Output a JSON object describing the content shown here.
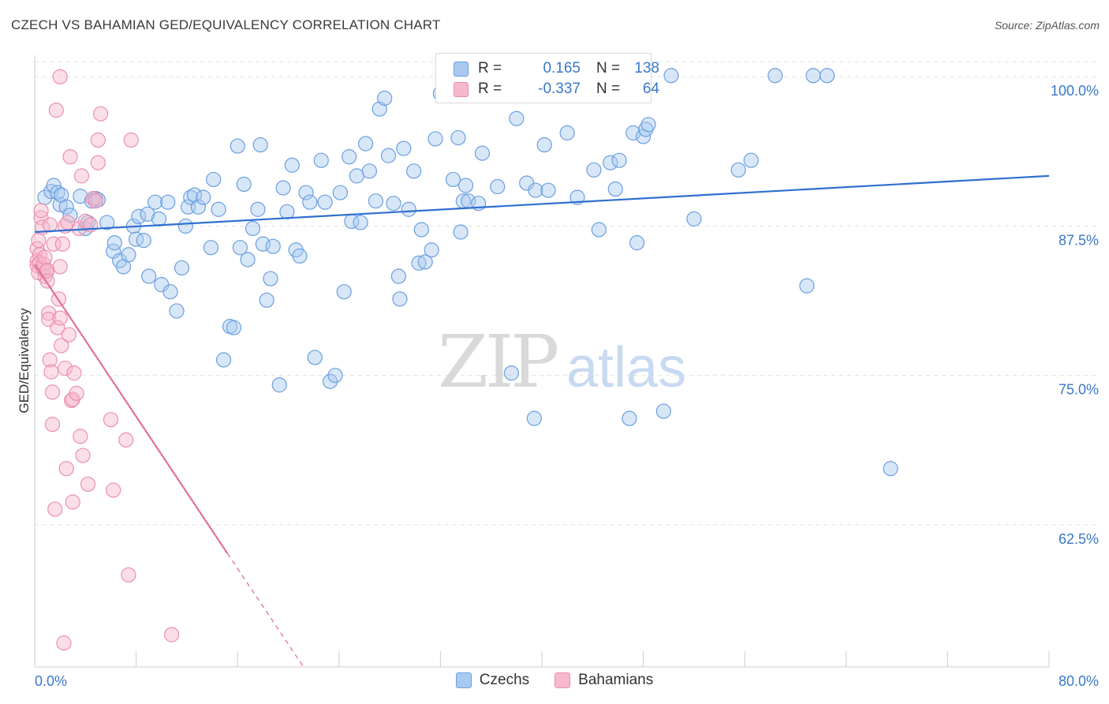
{
  "title": "CZECH VS BAHAMIAN GED/EQUIVALENCY CORRELATION CHART",
  "source": "Source: ZipAtlas.com",
  "watermark": {
    "zip": "ZIP",
    "atlas": "atlas"
  },
  "legend": {
    "rows": [
      {
        "r_label": "R =",
        "r_value": "0.165",
        "n_label": "N =",
        "n_value": "138"
      },
      {
        "r_label": "R =",
        "r_value": "-0.337",
        "n_label": "N =",
        "n_value": "64"
      }
    ]
  },
  "colors": {
    "czech_fill": "#a9c9f0",
    "czech_stroke": "#6a9fe0",
    "czech_line": "#2f6fd0",
    "bahamian_fill": "#f6b8cb",
    "bahamian_stroke": "#ec8fae",
    "bahamian_line": "#e0709a",
    "axis_label": "#3a78c9",
    "grid": "#e2e2e2"
  },
  "chart_data": {
    "type": "scatter",
    "title": "CZECH VS BAHAMIAN GED/EQUIVALENCY CORRELATION CHART",
    "xlabel": "",
    "ylabel": "GED/Equivalency",
    "xlim": [
      0,
      80
    ],
    "ylim": [
      50.6,
      101.8
    ],
    "x_tick_labels": [
      "0.0%",
      "80.0%"
    ],
    "y_ticks": [
      100,
      87.5,
      75,
      62.5
    ],
    "y_tick_labels": [
      "100.0%",
      "87.5%",
      "75.0%",
      "62.5%"
    ],
    "grid": "horizontal dashed",
    "legend_position": "bottom-center",
    "series": [
      {
        "name": "Czechs",
        "r": 0.165,
        "n": 138,
        "trend": {
          "x": [
            0,
            80
          ],
          "y": [
            87.0,
            91.7
          ]
        },
        "points": [
          [
            0.8,
            89.9
          ],
          [
            1.3,
            90.4
          ],
          [
            1.5,
            90.9
          ],
          [
            1.8,
            90.3
          ],
          [
            2.0,
            89.3
          ],
          [
            2.1,
            90.1
          ],
          [
            2.5,
            89.1
          ],
          [
            2.8,
            88.4
          ],
          [
            3.6,
            90.0
          ],
          [
            4.0,
            87.3
          ],
          [
            4.2,
            87.8
          ],
          [
            4.5,
            89.6
          ],
          [
            4.8,
            89.8
          ],
          [
            5.0,
            89.7
          ],
          [
            5.7,
            87.8
          ],
          [
            6.2,
            85.4
          ],
          [
            6.3,
            86.1
          ],
          [
            6.7,
            84.6
          ],
          [
            7.0,
            84.1
          ],
          [
            7.4,
            85.1
          ],
          [
            7.8,
            87.5
          ],
          [
            8.0,
            86.4
          ],
          [
            8.2,
            88.3
          ],
          [
            8.6,
            86.3
          ],
          [
            8.9,
            88.5
          ],
          [
            9.0,
            83.3
          ],
          [
            9.5,
            89.5
          ],
          [
            9.8,
            88.1
          ],
          [
            10.0,
            82.6
          ],
          [
            10.5,
            89.5
          ],
          [
            10.7,
            82.0
          ],
          [
            11.2,
            80.4
          ],
          [
            11.6,
            84.0
          ],
          [
            11.9,
            87.5
          ],
          [
            12.1,
            89.1
          ],
          [
            12.3,
            89.9
          ],
          [
            12.6,
            90.1
          ],
          [
            12.9,
            89.1
          ],
          [
            13.3,
            89.9
          ],
          [
            13.9,
            85.7
          ],
          [
            14.1,
            91.4
          ],
          [
            14.5,
            88.9
          ],
          [
            14.9,
            76.3
          ],
          [
            15.4,
            79.1
          ],
          [
            15.7,
            79.0
          ],
          [
            16.0,
            94.2
          ],
          [
            16.2,
            85.7
          ],
          [
            16.5,
            91.0
          ],
          [
            16.8,
            84.7
          ],
          [
            17.2,
            87.3
          ],
          [
            17.6,
            88.9
          ],
          [
            17.8,
            94.3
          ],
          [
            18.0,
            86.0
          ],
          [
            18.3,
            81.3
          ],
          [
            18.6,
            83.1
          ],
          [
            18.8,
            85.8
          ],
          [
            19.3,
            74.2
          ],
          [
            19.6,
            90.7
          ],
          [
            19.9,
            88.7
          ],
          [
            20.3,
            92.6
          ],
          [
            20.6,
            85.5
          ],
          [
            20.9,
            85.0
          ],
          [
            21.4,
            90.3
          ],
          [
            21.7,
            89.5
          ],
          [
            22.1,
            76.5
          ],
          [
            22.6,
            93.0
          ],
          [
            22.9,
            89.5
          ],
          [
            23.3,
            74.5
          ],
          [
            23.7,
            75.0
          ],
          [
            24.1,
            90.3
          ],
          [
            24.4,
            82.0
          ],
          [
            24.8,
            93.3
          ],
          [
            25.0,
            87.9
          ],
          [
            25.4,
            91.7
          ],
          [
            25.7,
            87.8
          ],
          [
            26.1,
            94.4
          ],
          [
            26.4,
            92.1
          ],
          [
            26.9,
            89.6
          ],
          [
            27.2,
            97.3
          ],
          [
            27.6,
            98.2
          ],
          [
            27.9,
            93.4
          ],
          [
            28.3,
            89.4
          ],
          [
            28.7,
            83.3
          ],
          [
            28.8,
            81.4
          ],
          [
            29.1,
            94.0
          ],
          [
            29.5,
            88.9
          ],
          [
            29.9,
            92.1
          ],
          [
            30.3,
            84.4
          ],
          [
            30.5,
            87.2
          ],
          [
            30.8,
            84.5
          ],
          [
            31.3,
            85.5
          ],
          [
            31.6,
            94.8
          ],
          [
            32.0,
            98.6
          ],
          [
            33.0,
            91.4
          ],
          [
            33.4,
            94.9
          ],
          [
            33.6,
            87.0
          ],
          [
            33.8,
            89.6
          ],
          [
            34.0,
            90.9
          ],
          [
            34.2,
            89.6
          ],
          [
            35.0,
            89.4
          ],
          [
            35.3,
            93.6
          ],
          [
            36.0,
            100.1
          ],
          [
            36.5,
            90.8
          ],
          [
            37.6,
            75.2
          ],
          [
            38.0,
            96.5
          ],
          [
            38.8,
            91.1
          ],
          [
            39.4,
            71.4
          ],
          [
            39.5,
            90.5
          ],
          [
            40.2,
            94.3
          ],
          [
            40.5,
            90.5
          ],
          [
            42.0,
            95.3
          ],
          [
            42.8,
            89.9
          ],
          [
            44.1,
            92.2
          ],
          [
            44.5,
            87.2
          ],
          [
            45.4,
            92.8
          ],
          [
            45.8,
            90.6
          ],
          [
            46.1,
            93.0
          ],
          [
            46.9,
            71.4
          ],
          [
            47.2,
            95.3
          ],
          [
            47.5,
            86.1
          ],
          [
            48.0,
            95.0
          ],
          [
            48.2,
            95.6
          ],
          [
            48.4,
            96.0
          ],
          [
            49.6,
            72.0
          ],
          [
            50.2,
            100.1
          ],
          [
            52.0,
            88.1
          ],
          [
            55.5,
            92.2
          ],
          [
            56.5,
            93.0
          ],
          [
            58.4,
            100.1
          ],
          [
            60.9,
            82.5
          ],
          [
            61.4,
            100.1
          ],
          [
            62.5,
            100.1
          ],
          [
            67.5,
            67.2
          ]
        ]
      },
      {
        "name": "Bahamians",
        "r": -0.337,
        "n": 64,
        "trend": {
          "x": [
            0,
            15.2
          ],
          "y": [
            84.3,
            60.1
          ]
        },
        "trend_dashed": {
          "x": [
            15.2,
            21.2
          ],
          "y": [
            60.1,
            50.6
          ]
        },
        "points": [
          [
            0.2,
            85.6
          ],
          [
            0.2,
            84.6
          ],
          [
            0.2,
            84.2
          ],
          [
            0.3,
            83.6
          ],
          [
            0.3,
            86.3
          ],
          [
            0.4,
            85.1
          ],
          [
            0.4,
            84.4
          ],
          [
            0.5,
            88.2
          ],
          [
            0.5,
            88.8
          ],
          [
            0.6,
            87.4
          ],
          [
            0.7,
            83.9
          ],
          [
            0.7,
            84.3
          ],
          [
            0.8,
            83.3
          ],
          [
            0.8,
            84.9
          ],
          [
            0.9,
            83.7
          ],
          [
            1.0,
            83.8
          ],
          [
            1.0,
            82.9
          ],
          [
            1.1,
            80.2
          ],
          [
            1.1,
            79.7
          ],
          [
            1.2,
            87.6
          ],
          [
            1.2,
            76.3
          ],
          [
            1.3,
            75.3
          ],
          [
            1.4,
            70.9
          ],
          [
            1.4,
            73.6
          ],
          [
            1.5,
            86.0
          ],
          [
            1.6,
            63.8
          ],
          [
            1.7,
            97.2
          ],
          [
            1.8,
            79.0
          ],
          [
            1.9,
            81.4
          ],
          [
            2.0,
            79.8
          ],
          [
            2.0,
            84.1
          ],
          [
            2.0,
            100.0
          ],
          [
            2.1,
            77.5
          ],
          [
            2.2,
            86.0
          ],
          [
            2.3,
            52.6
          ],
          [
            2.4,
            75.6
          ],
          [
            2.4,
            87.5
          ],
          [
            2.5,
            67.2
          ],
          [
            2.6,
            87.8
          ],
          [
            2.7,
            78.4
          ],
          [
            2.8,
            93.3
          ],
          [
            2.9,
            72.9
          ],
          [
            3.0,
            73.0
          ],
          [
            3.0,
            64.4
          ],
          [
            3.1,
            75.2
          ],
          [
            3.3,
            73.5
          ],
          [
            3.5,
            87.3
          ],
          [
            3.6,
            69.9
          ],
          [
            3.7,
            91.7
          ],
          [
            3.8,
            68.3
          ],
          [
            4.0,
            87.9
          ],
          [
            4.2,
            65.9
          ],
          [
            4.4,
            87.6
          ],
          [
            4.6,
            89.8
          ],
          [
            4.8,
            89.6
          ],
          [
            5.0,
            92.8
          ],
          [
            5.0,
            94.7
          ],
          [
            5.2,
            96.9
          ],
          [
            6.0,
            71.3
          ],
          [
            6.2,
            65.4
          ],
          [
            7.2,
            69.6
          ],
          [
            7.4,
            58.3
          ],
          [
            7.6,
            94.7
          ],
          [
            10.8,
            53.3
          ]
        ]
      }
    ]
  },
  "bottom_legend": [
    {
      "label": "Czechs"
    },
    {
      "label": "Bahamians"
    }
  ]
}
